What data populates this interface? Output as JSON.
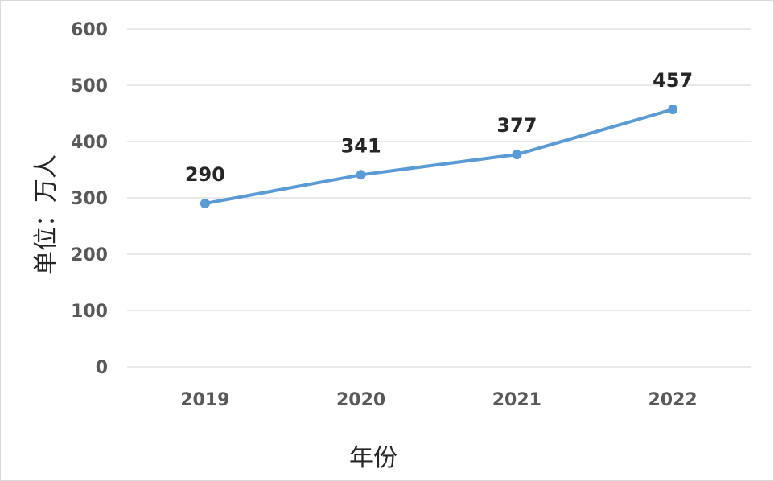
{
  "chart_data": {
    "type": "line",
    "categories": [
      "2019",
      "2020",
      "2021",
      "2022"
    ],
    "series": [
      {
        "values": [
          290,
          341,
          377,
          457
        ],
        "color": "#5b9bd5"
      }
    ],
    "data_labels": [
      "290",
      "341",
      "377",
      "457"
    ],
    "title": "",
    "xlabel": "年份",
    "ylabel": "单位：万人",
    "ylim": [
      0,
      600
    ],
    "yticks": [
      "0",
      "100",
      "200",
      "300",
      "400",
      "500",
      "600"
    ],
    "grid": true,
    "legend": "none"
  }
}
